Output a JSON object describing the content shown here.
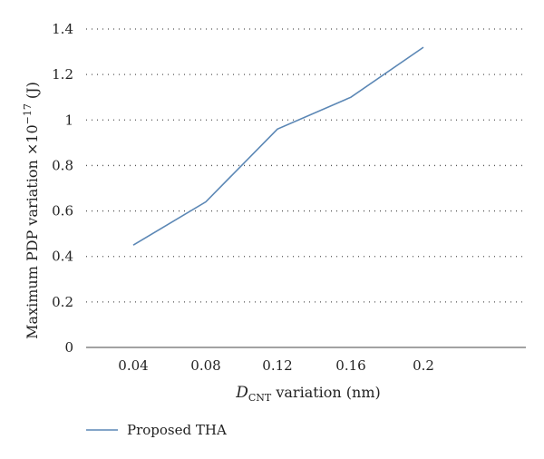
{
  "chart_data": {
    "type": "line",
    "x": [
      0.04,
      0.08,
      0.12,
      0.16,
      0.2
    ],
    "x_tick_labels": [
      "0.04",
      "0.08",
      "0.12",
      "0.16",
      "0.2"
    ],
    "y_ticks": [
      0,
      0.2,
      0.4,
      0.6,
      0.8,
      1,
      1.2,
      1.4
    ],
    "y_tick_labels": [
      "0",
      "0.2",
      "0.4",
      "0.6",
      "0.8",
      "1",
      "1.2",
      "1.4"
    ],
    "ylim": [
      0,
      1.4
    ],
    "series": [
      {
        "name": "Proposed THA",
        "color": "#5b87b5",
        "values": [
          0.45,
          0.64,
          0.96,
          1.1,
          1.32
        ]
      }
    ],
    "xlabel": {
      "main": "D",
      "sub": "CNT",
      "rest": " variation (nm)"
    },
    "ylabel": {
      "main": "Maximum PDP variation ×10",
      "sup": "−17",
      "rest": " (J)"
    },
    "grid": "horizontal-dotted",
    "legend_position": "bottom-left"
  }
}
